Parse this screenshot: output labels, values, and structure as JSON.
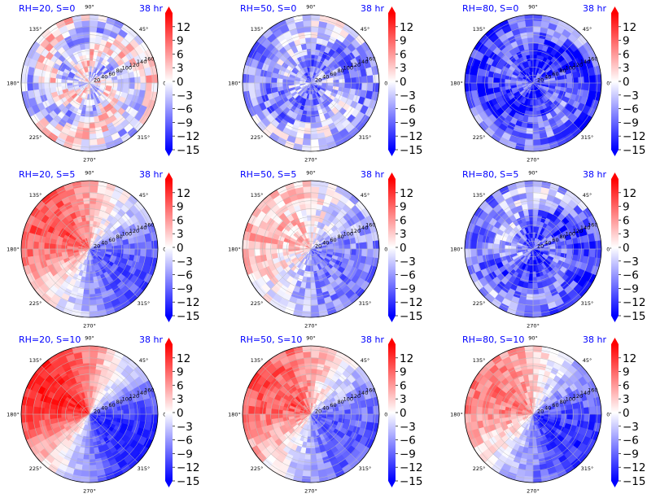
{
  "chart_data": {
    "type": "heatmap",
    "projection": "polar",
    "grid": true,
    "colormap": [
      "#0000ff",
      "#ffffff",
      "#ff0000"
    ],
    "colorbar": {
      "ticks": [
        "12",
        "9",
        "6",
        "3",
        "0",
        "−3",
        "−6",
        "−9",
        "−12",
        "−15"
      ],
      "tick_values": [
        12,
        9,
        6,
        3,
        0,
        -3,
        -6,
        -9,
        -12,
        -15
      ],
      "range": [
        -15,
        15
      ],
      "extend": "both"
    },
    "angular_ticks": [
      "0°",
      "45°",
      "90°",
      "135°",
      "180°",
      "225°",
      "270°",
      "315°"
    ],
    "radial_ticks": [
      "20",
      "40",
      "60",
      "80",
      "100",
      "120",
      "140",
      "160"
    ],
    "panels": [
      {
        "title": "RH=20, S=0",
        "time": "38 hr",
        "pattern": "noise",
        "base": -1,
        "bias": 0,
        "amp": 5
      },
      {
        "title": "RH=50, S=0",
        "time": "38 hr",
        "pattern": "spiral",
        "base": -4,
        "bias": 0,
        "amp": 5
      },
      {
        "title": "RH=80, S=0",
        "time": "38 hr",
        "pattern": "spiral",
        "base": -9,
        "bias": 0,
        "amp": 5
      },
      {
        "title": "RH=20, S=5",
        "time": "38 hr",
        "pattern": "dipole",
        "base": 0,
        "bias": 10,
        "amp": 3
      },
      {
        "title": "RH=50, S=5",
        "time": "38 hr",
        "pattern": "dipole",
        "base": -2,
        "bias": 6,
        "amp": 4
      },
      {
        "title": "RH=80, S=5",
        "time": "38 hr",
        "pattern": "spiral",
        "base": -7,
        "bias": 2,
        "amp": 5
      },
      {
        "title": "RH=20, S=10",
        "time": "38 hr",
        "pattern": "dipole",
        "base": 0,
        "bias": 13,
        "amp": 2
      },
      {
        "title": "RH=50, S=10",
        "time": "38 hr",
        "pattern": "dipole",
        "base": 0,
        "bias": 10,
        "amp": 3
      },
      {
        "title": "RH=80, S=10",
        "time": "38 hr",
        "pattern": "dipole",
        "base": -2,
        "bias": 10,
        "amp": 3
      }
    ]
  }
}
